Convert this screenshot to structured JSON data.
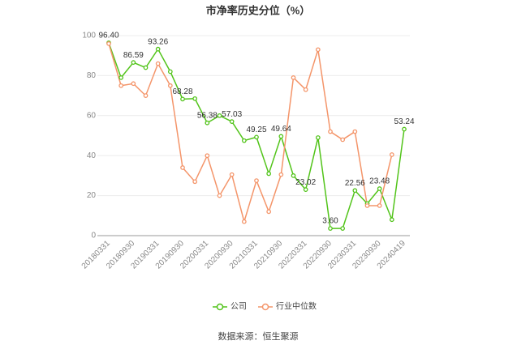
{
  "chart_data": {
    "type": "line",
    "title": "市净率历史分位（%）",
    "source": "数据来源：恒生聚源",
    "categories": [
      "20180331",
      null,
      "20180930",
      null,
      "20190331",
      null,
      "20190930",
      null,
      "20200331",
      null,
      "20200930",
      null,
      "20210331",
      null,
      "20210930",
      null,
      "20220331",
      null,
      "20220930",
      null,
      "20230331",
      null,
      "20230930",
      null,
      "20240419"
    ],
    "series": [
      {
        "name": "公司",
        "color": "#52c41a",
        "values": [
          96.4,
          79,
          86.59,
          84,
          93.26,
          82,
          68.28,
          68.5,
          56.38,
          60,
          57.03,
          47.5,
          49.25,
          31,
          49.64,
          30,
          23.02,
          49,
          3.6,
          3.6,
          22.56,
          16,
          23.48,
          8,
          53.24
        ],
        "value_labels": [
          "96.40",
          null,
          "86.59",
          null,
          "93.26",
          null,
          "68.28",
          null,
          "56.38",
          null,
          "57.03",
          null,
          "49.25",
          null,
          "49.64",
          null,
          "23.02",
          null,
          "3.60",
          null,
          "22.56",
          null,
          "23.48",
          null,
          "53.24"
        ]
      },
      {
        "name": "行业中位数",
        "color": "#f4956a",
        "values": [
          96,
          75,
          76,
          70,
          86,
          75,
          34,
          27,
          40,
          20,
          30.5,
          7,
          27.5,
          12,
          30.5,
          79,
          73,
          93,
          52,
          48,
          52,
          15,
          15,
          40.5,
          null
        ]
      }
    ],
    "ylim": [
      0,
      100
    ],
    "yticks": [
      0,
      20,
      40,
      60,
      80,
      100
    ],
    "grid": true
  }
}
